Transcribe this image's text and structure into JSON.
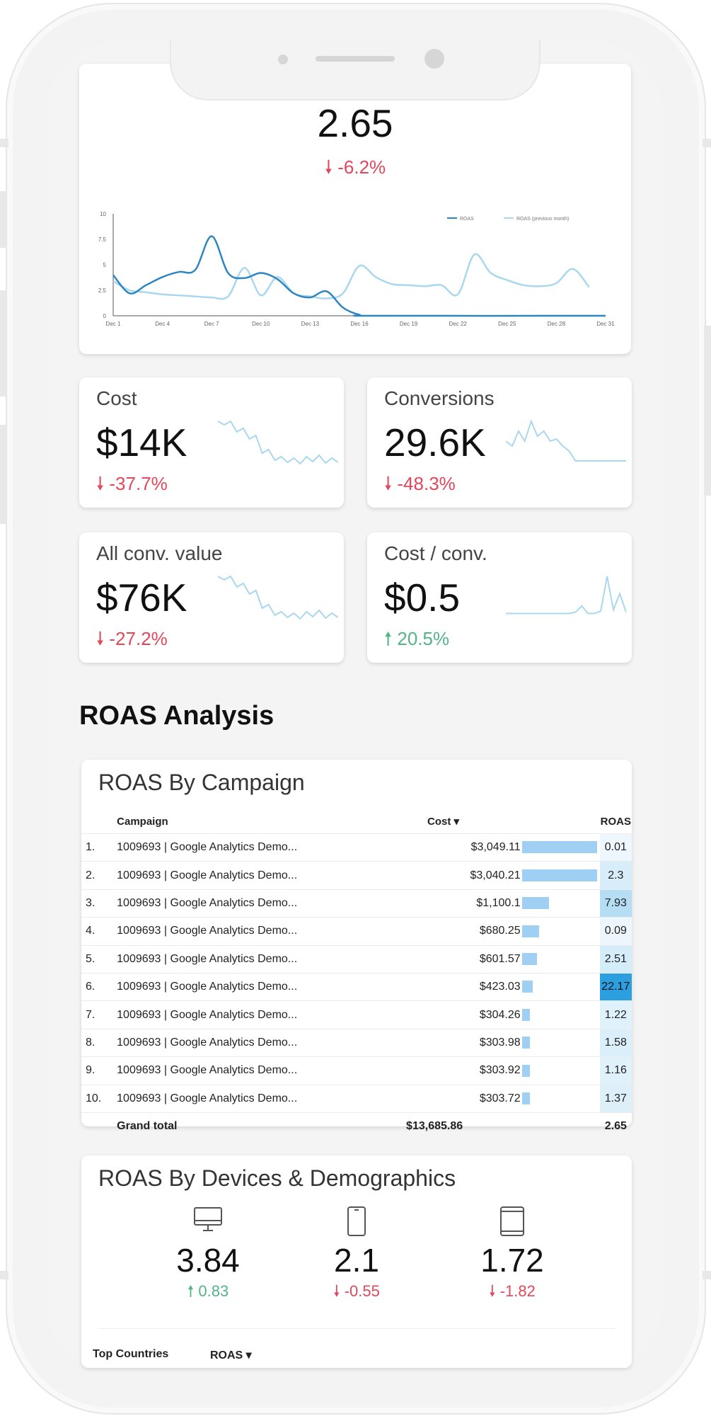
{
  "colors": {
    "accent": "#2b9fe0",
    "line_current": "#2e86c1",
    "line_previous": "#a9d8ee",
    "negative": "#e3485a",
    "positive": "#53b486"
  },
  "roas_overview": {
    "value": "2.65",
    "delta": "-6.2%",
    "delta_direction": "down",
    "chart_data": {
      "type": "line",
      "legend": [
        "ROAS",
        "ROAS (previous month)"
      ],
      "legend_position": "top-right",
      "x_ticks": [
        "Dec 1",
        "Dec 4",
        "Dec 7",
        "Dec 10",
        "Dec 13",
        "Dec 16",
        "Dec 19",
        "Dec 22",
        "Dec 25",
        "Dec 28",
        "Dec 31"
      ],
      "y_ticks": [
        "0",
        "2.5",
        "5",
        "7.5",
        "10"
      ],
      "ylim": [
        0,
        10
      ],
      "series": [
        {
          "name": "ROAS",
          "x": [
            1,
            2,
            3,
            4,
            5,
            6,
            7,
            8,
            9,
            10,
            11,
            12,
            13,
            14,
            15,
            16,
            17,
            31
          ],
          "values": [
            4.0,
            2.2,
            3.0,
            3.8,
            4.3,
            4.5,
            7.8,
            4.2,
            3.7,
            4.2,
            3.6,
            2.2,
            1.8,
            2.4,
            0.8,
            0.1,
            0.0,
            0.0
          ]
        },
        {
          "name": "ROAS (previous month)",
          "x": [
            1,
            2,
            3,
            4,
            5,
            6,
            7,
            8,
            9,
            10,
            11,
            12,
            13,
            14,
            15,
            16,
            17,
            18,
            19,
            20,
            21,
            22,
            23,
            24,
            25,
            26,
            27,
            28,
            29,
            30
          ],
          "values": [
            3.4,
            2.5,
            2.3,
            2.1,
            2.0,
            1.9,
            1.8,
            1.9,
            4.7,
            2.0,
            3.8,
            2.2,
            1.9,
            1.7,
            2.2,
            4.9,
            3.8,
            3.1,
            3.0,
            2.9,
            3.0,
            2.1,
            6.0,
            4.2,
            3.5,
            3.0,
            2.9,
            3.2,
            4.6,
            2.8
          ]
        }
      ]
    }
  },
  "kpis": [
    {
      "label": "Cost",
      "value": "$14K",
      "delta": "-37.7%",
      "direction": "down",
      "spark": [
        7,
        6.5,
        7,
        5.5,
        6,
        4.5,
        5,
        2.5,
        3,
        1.5,
        2,
        1.2,
        1.8,
        1,
        2,
        1.3,
        2.2,
        1.1,
        1.8,
        1.2
      ]
    },
    {
      "label": "Conversions",
      "value": "29.6K",
      "delta": "-48.3%",
      "direction": "down",
      "spark": [
        3,
        2.5,
        4,
        3,
        5,
        3.5,
        4,
        3,
        3.2,
        2.5,
        2,
        1,
        1,
        1,
        1,
        1,
        1,
        1,
        1,
        1
      ]
    },
    {
      "label": "All conv. value",
      "value": "$76K",
      "delta": "-27.2%",
      "direction": "down",
      "spark": [
        7,
        6.5,
        7,
        5.5,
        6,
        4.5,
        5,
        2.5,
        3,
        1.5,
        2,
        1.2,
        1.8,
        1,
        2,
        1.3,
        2.2,
        1.1,
        1.8,
        1.2
      ]
    },
    {
      "label": "Cost / conv.",
      "value": "$0.5",
      "delta": "20.5%",
      "direction": "up",
      "spark": [
        1,
        1,
        1,
        1,
        1,
        1,
        1,
        1,
        1,
        1,
        1,
        1.1,
        1.6,
        1,
        1,
        1.2,
        4,
        1.3,
        2.6,
        1.1
      ]
    }
  ],
  "section_title": "ROAS Analysis",
  "campaign_table": {
    "title": "ROAS By Campaign",
    "headers": {
      "campaign": "Campaign",
      "cost": "Cost ▾",
      "roas": "ROAS"
    },
    "rows": [
      {
        "n": "1.",
        "campaign": "1009693 | Google Analytics Demo...",
        "cost": "$3,049.11",
        "cost_val": 3049.11,
        "roas": "0.01",
        "roas_val": 0.01
      },
      {
        "n": "2.",
        "campaign": "1009693 | Google Analytics Demo...",
        "cost": "$3,040.21",
        "cost_val": 3040.21,
        "roas": "2.3",
        "roas_val": 2.3
      },
      {
        "n": "3.",
        "campaign": "1009693 | Google Analytics Demo...",
        "cost": "$1,100.1",
        "cost_val": 1100.1,
        "roas": "7.93",
        "roas_val": 7.93
      },
      {
        "n": "4.",
        "campaign": "1009693 | Google Analytics Demo...",
        "cost": "$680.25",
        "cost_val": 680.25,
        "roas": "0.09",
        "roas_val": 0.09
      },
      {
        "n": "5.",
        "campaign": "1009693 | Google Analytics Demo...",
        "cost": "$601.57",
        "cost_val": 601.57,
        "roas": "2.51",
        "roas_val": 2.51
      },
      {
        "n": "6.",
        "campaign": "1009693 | Google Analytics Demo...",
        "cost": "$423.03",
        "cost_val": 423.03,
        "roas": "22.17",
        "roas_val": 22.17
      },
      {
        "n": "7.",
        "campaign": "1009693 | Google Analytics Demo...",
        "cost": "$304.26",
        "cost_val": 304.26,
        "roas": "1.22",
        "roas_val": 1.22
      },
      {
        "n": "8.",
        "campaign": "1009693 | Google Analytics Demo...",
        "cost": "$303.98",
        "cost_val": 303.98,
        "roas": "1.58",
        "roas_val": 1.58
      },
      {
        "n": "9.",
        "campaign": "1009693 | Google Analytics Demo...",
        "cost": "$303.92",
        "cost_val": 303.92,
        "roas": "1.16",
        "roas_val": 1.16
      },
      {
        "n": "10.",
        "campaign": "1009693 | Google Analytics Demo...",
        "cost": "$303.72",
        "cost_val": 303.72,
        "roas": "1.37",
        "roas_val": 1.37
      }
    ],
    "grand_total": {
      "label": "Grand total",
      "cost": "$13,685.86",
      "roas": "2.65"
    }
  },
  "devices_card": {
    "title": "ROAS By Devices & Demographics",
    "devices": [
      {
        "icon": "desktop-icon",
        "value": "3.84",
        "delta": "0.83",
        "direction": "up"
      },
      {
        "icon": "mobile-icon",
        "value": "2.1",
        "delta": "-0.55",
        "direction": "down"
      },
      {
        "icon": "tablet-icon",
        "value": "1.72",
        "delta": "-1.82",
        "direction": "down"
      }
    ],
    "countries_headers": {
      "country": "Top Countries",
      "roas": "ROAS ▾"
    }
  }
}
